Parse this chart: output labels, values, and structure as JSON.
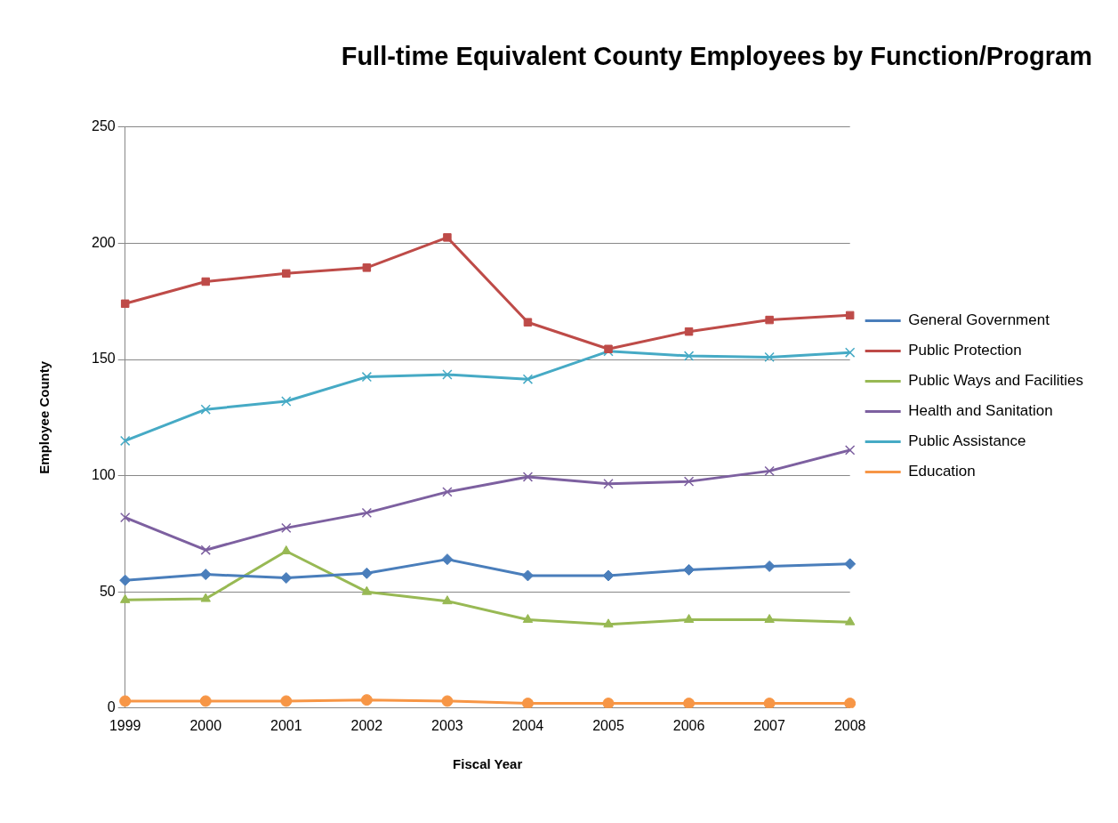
{
  "chart_data": {
    "type": "line",
    "title": "Full-time Equivalent County Employees by Function/Program",
    "xlabel": "Fiscal Year",
    "ylabel": "Employee County",
    "categories": [
      "1999",
      "2000",
      "2001",
      "2002",
      "2003",
      "2004",
      "2005",
      "2006",
      "2007",
      "2008"
    ],
    "series": [
      {
        "name": "General Government",
        "color": "#4a7ebb",
        "marker": "diamond",
        "values": [
          55,
          57.5,
          56,
          58,
          64,
          57,
          57,
          59.5,
          61,
          62
        ]
      },
      {
        "name": "Public Protection",
        "color": "#be4b48",
        "marker": "square",
        "values": [
          174,
          183.5,
          187,
          189.5,
          202.5,
          166,
          154.5,
          162,
          167,
          169
        ]
      },
      {
        "name": "Public Ways and Facilities",
        "color": "#98b954",
        "marker": "triangle",
        "values": [
          46.5,
          47,
          67.5,
          50,
          46,
          38,
          36,
          38,
          38,
          37
        ]
      },
      {
        "name": "Health and Sanitation",
        "color": "#7d60a0",
        "marker": "cross",
        "values": [
          82,
          68,
          77.5,
          84,
          93,
          99.5,
          96.5,
          97.5,
          102,
          111
        ]
      },
      {
        "name": "Public Assistance",
        "color": "#46aac5",
        "marker": "cross",
        "values": [
          115,
          128.5,
          132,
          142.5,
          143.5,
          141.5,
          153.5,
          151.5,
          151,
          153
        ]
      },
      {
        "name": "Education",
        "color": "#f79646",
        "marker": "circle",
        "values": [
          3,
          3,
          3,
          3.5,
          3,
          2,
          2,
          2,
          2,
          2
        ]
      }
    ],
    "ylim": [
      0,
      250
    ],
    "yticks": [
      0,
      50,
      100,
      150,
      200,
      250
    ],
    "grid": "y",
    "legend": "right",
    "line_style": "solid"
  }
}
